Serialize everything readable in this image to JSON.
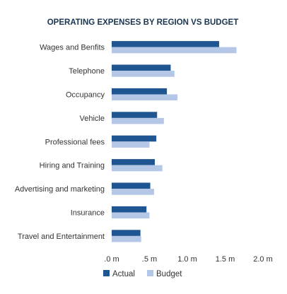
{
  "chart_data": {
    "type": "bar",
    "orientation": "horizontal",
    "title": "OPERATING EXPENSES BY REGION VS BUDGET",
    "categories": [
      "Wages and Benfits",
      "Telephone",
      "Occupancy",
      "Vehicle",
      "Professional fees",
      "Hiring and Training",
      "Advertising and marketing",
      "Insurance",
      "Travel and Entertainment"
    ],
    "series": [
      {
        "name": "Actual",
        "color": "#1f5591",
        "values": [
          1.42,
          0.78,
          0.73,
          0.6,
          0.59,
          0.57,
          0.51,
          0.46,
          0.38
        ]
      },
      {
        "name": "Budget",
        "color": "#b4c7e7",
        "values": [
          1.65,
          0.83,
          0.87,
          0.69,
          0.5,
          0.67,
          0.56,
          0.5,
          0.39
        ]
      }
    ],
    "xlim": [
      0,
      2.0
    ],
    "x_ticks": [
      ".0 m",
      ".5 m",
      "1.0 m",
      "1.5 m",
      "2.0 m"
    ],
    "grid": false,
    "legend_position": "bottom"
  }
}
